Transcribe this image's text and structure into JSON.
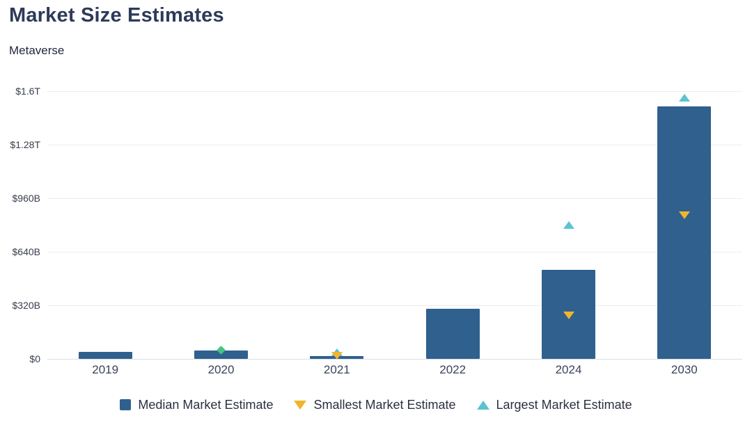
{
  "header": {
    "title": "Market Size Estimates",
    "subtitle": "Metaverse"
  },
  "colors": {
    "title": "#2e3a59",
    "bar": "#2f608e",
    "smallest_marker": "#f0b52c",
    "largest_marker": "#5ac4d0",
    "overlap_marker": "#45c380",
    "gridline": "#ededf1",
    "axis_line": "#d9dde3",
    "tick_text": "#39435a",
    "legend_text": "#2a3140"
  },
  "chart_data": {
    "type": "bar",
    "title": "Market Size Estimates",
    "subtitle": "Metaverse",
    "unit": "USD (B = billions, T = trillions)",
    "categories": [
      "2019",
      "2020",
      "2021",
      "2022",
      "2024",
      "2030"
    ],
    "series": [
      {
        "name": "Median Market Estimate",
        "marker": "square",
        "color": "#2f608e",
        "values": [
          40,
          50,
          18,
          300,
          530,
          1510
        ]
      },
      {
        "name": "Smallest Market Estimate",
        "marker": "triangle-down",
        "color": "#f0b52c",
        "values": [
          null,
          50,
          20,
          null,
          260,
          860
        ]
      },
      {
        "name": "Largest Market Estimate",
        "marker": "triangle-up",
        "color": "#5ac4d0",
        "values": [
          null,
          50,
          40,
          null,
          800,
          1560
        ]
      }
    ],
    "overlap_marker_color": "#45c380",
    "yticks": [
      {
        "value": 0,
        "label": "$0"
      },
      {
        "value": 320,
        "label": "$320B"
      },
      {
        "value": 640,
        "label": "$640B"
      },
      {
        "value": 960,
        "label": "$960B"
      },
      {
        "value": 1280,
        "label": "$1.28T"
      },
      {
        "value": 1600,
        "label": "$1.6T"
      }
    ],
    "ylim": [
      0,
      1600
    ],
    "grid": true,
    "legend_position": "bottom"
  }
}
